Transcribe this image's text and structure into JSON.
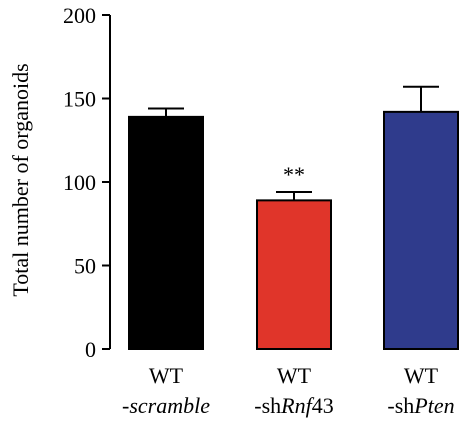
{
  "chart_data": {
    "type": "bar",
    "categories": [
      {
        "line1": "WT",
        "prefix": "-",
        "italic_part": "scramble",
        "suffix": ""
      },
      {
        "line1": "WT",
        "prefix": "-sh",
        "italic_part": "Rnf",
        "suffix": "43"
      },
      {
        "line1": "WT",
        "prefix": "-sh",
        "italic_part": "Pten",
        "suffix": ""
      }
    ],
    "values": [
      139,
      89,
      142
    ],
    "errors": [
      5,
      5,
      15
    ],
    "colors": [
      "#000000",
      "#e0352a",
      "#2f3b8c"
    ],
    "annotations": [
      "",
      "**",
      ""
    ],
    "ylabel": "Total number of organoids",
    "ylim": [
      0,
      200
    ],
    "yticks": [
      0,
      50,
      100,
      150,
      200
    ],
    "grid": false,
    "legend": "none"
  }
}
